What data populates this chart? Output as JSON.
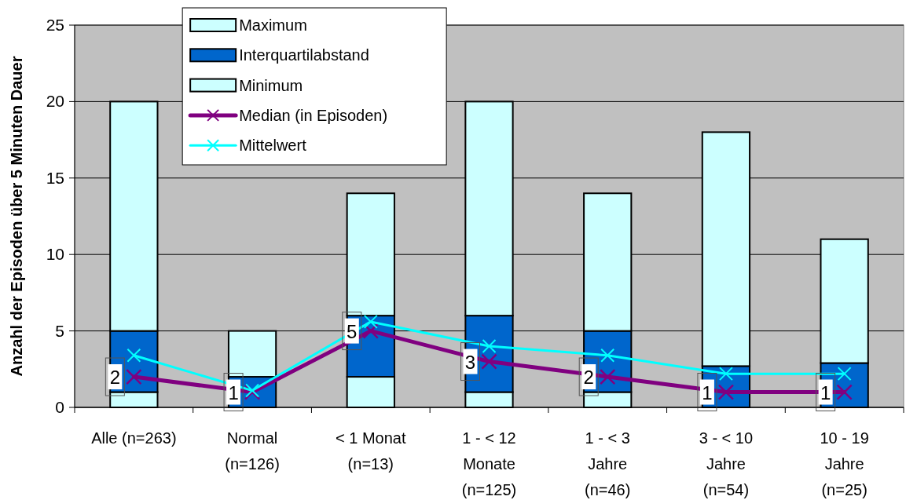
{
  "chart_data": {
    "type": "bar",
    "stacked": true,
    "ylabel": "Anzahl der Episoden über 5 Minuten Dauer",
    "categories": [
      "Alle (n=263)",
      "Normal\n(n=126)",
      "< 1 Monat\n(n=13)",
      "1 - < 12\nMonate\n(n=125)",
      "1 - < 3\nJahre\n(n=46)",
      "3 - < 10\nJahre\n(n=54)",
      "10 - 19\nJahre\n(n=25)"
    ],
    "series": [
      {
        "name": "Minimum",
        "color": "#ccffff",
        "values": [
          1,
          0,
          2,
          1,
          1,
          0,
          0
        ]
      },
      {
        "name": "Interquartilabstand",
        "color": "#0066cc",
        "values": [
          4,
          2,
          4,
          5,
          4,
          2.7,
          2.9
        ]
      },
      {
        "name": "Maximum",
        "color": "#ccffff",
        "values": [
          15,
          3,
          8,
          14,
          9,
          15.3,
          8.1
        ]
      },
      {
        "name": "Median (in Episoden)",
        "type": "line",
        "color": "#800080",
        "marker": "cross",
        "values": [
          2,
          1,
          5,
          3,
          2,
          1,
          1
        ],
        "value_labels": [
          "2",
          "1",
          "5",
          "3",
          "2",
          "1",
          "1"
        ]
      },
      {
        "name": "Mittelwert",
        "type": "line",
        "color": "#00ffff",
        "marker": "cross",
        "values": [
          3.4,
          1.1,
          5.6,
          4.0,
          3.4,
          2.2,
          2.2
        ]
      }
    ],
    "ylim": [
      0,
      25
    ],
    "yticks": [
      0,
      5,
      10,
      15,
      20,
      25
    ],
    "grid": "y",
    "legend": "top left"
  }
}
